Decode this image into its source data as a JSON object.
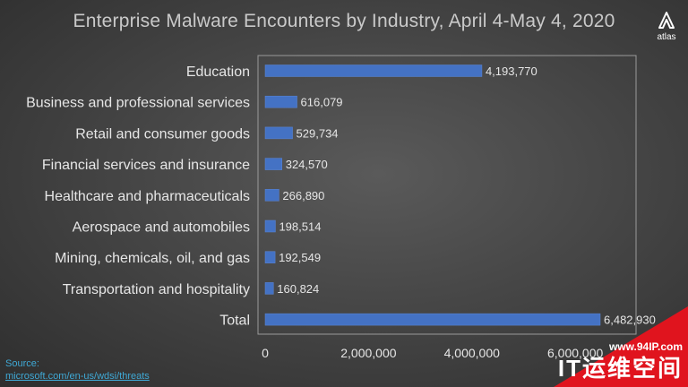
{
  "chart_data": {
    "type": "bar",
    "orientation": "horizontal",
    "title": "Enterprise Malware Encounters by Industry, April 4-May 4, 2020",
    "categories": [
      "Education",
      "Business and professional services",
      "Retail and consumer goods",
      "Financial services and insurance",
      "Healthcare and pharmaceuticals",
      "Aerospace and automobiles",
      "Mining, chemicals, oil, and gas",
      "Transportation and hospitality",
      "Total"
    ],
    "values": [
      4193770,
      616079,
      529734,
      324570,
      266890,
      198514,
      192549,
      160824,
      6482930
    ],
    "data_labels": [
      "4,193,770",
      "616,079",
      "529,734",
      "324,570",
      "266,890",
      "198,514",
      "192,549",
      "160,824",
      "6,482,930"
    ],
    "x_ticks": [
      0,
      2000000,
      4000000,
      6000000
    ],
    "x_tick_labels": [
      "0",
      "2,000,000",
      "4,000,000",
      "6,000,000"
    ],
    "xlim": [
      0,
      6500000
    ],
    "grid": false,
    "legend": "none",
    "bar_color": "#4472c4"
  },
  "source": {
    "label": "Source:",
    "link": "microsoft.com/en-us/wdsi/threats"
  },
  "logo": {
    "text": "atlas"
  },
  "watermark": {
    "url": "www.94IP.com",
    "brand": "IT运维空间"
  }
}
